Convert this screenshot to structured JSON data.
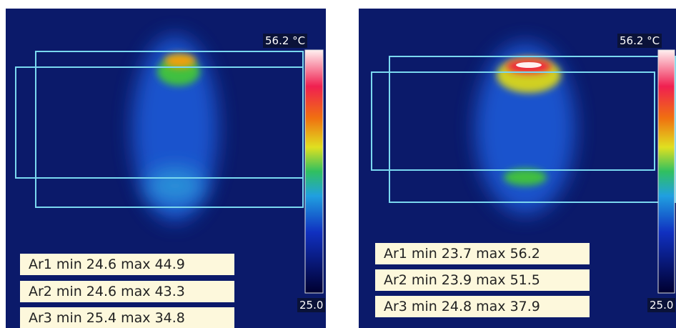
{
  "panels": [
    {
      "scale_max": "56.2 °C",
      "scale_min": "25.0",
      "areas": [
        "Ar1 min 24.6 max 44.9",
        "Ar2 min 24.6 max 43.3",
        "Ar3 min 25.4 max 34.8"
      ]
    },
    {
      "scale_max": "56.2 °C",
      "scale_min": "25.0",
      "areas": [
        "Ar1 min 23.7 max 56.2",
        "Ar2 min 23.9 max 51.5",
        "Ar3 min 24.8 max 37.9"
      ]
    }
  ]
}
